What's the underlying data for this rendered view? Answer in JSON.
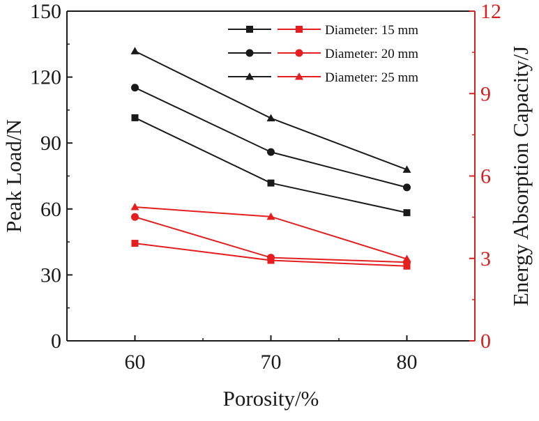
{
  "chart_data": {
    "type": "line",
    "title": "",
    "xlabel": "Porosity/%",
    "ylabel": "Peak Load/N",
    "y2label": "Energy Absorption Capacity/J",
    "x": [
      60,
      70,
      80
    ],
    "xlim": [
      55,
      85
    ],
    "ylim": [
      0,
      150
    ],
    "y2lim": [
      0,
      12
    ],
    "x_ticks": [
      "60",
      "70",
      "80"
    ],
    "y_ticks": [
      "0",
      "30",
      "60",
      "90",
      "120",
      "150"
    ],
    "y2_ticks": [
      "0",
      "3",
      "6",
      "9",
      "12"
    ],
    "grid": false,
    "legend_position": "top-right",
    "legend": [
      "Diameter: 15 mm",
      "Diameter: 20 mm",
      "Diameter: 25 mm"
    ],
    "colors": {
      "peak_load": "#1a1a1a",
      "energy": "#e41e1e",
      "right_axis": "#d61f1f"
    },
    "series": [
      {
        "name": "Diameter: 15 mm",
        "axis": "left",
        "marker": "square",
        "values": [
          101.5,
          71.8,
          58.3
        ]
      },
      {
        "name": "Diameter: 20 mm",
        "axis": "left",
        "marker": "circle",
        "values": [
          115.2,
          85.9,
          69.8
        ]
      },
      {
        "name": "Diameter: 25 mm",
        "axis": "left",
        "marker": "triangle",
        "values": [
          131.8,
          101.3,
          77.9
        ]
      },
      {
        "name": "Diameter: 15 mm",
        "axis": "right",
        "marker": "square",
        "values": [
          3.55,
          2.93,
          2.72
        ]
      },
      {
        "name": "Diameter: 20 mm",
        "axis": "right",
        "marker": "circle",
        "values": [
          4.51,
          3.03,
          2.86
        ]
      },
      {
        "name": "Diameter: 25 mm",
        "axis": "right",
        "marker": "triangle",
        "values": [
          4.87,
          4.52,
          2.98
        ]
      }
    ]
  }
}
